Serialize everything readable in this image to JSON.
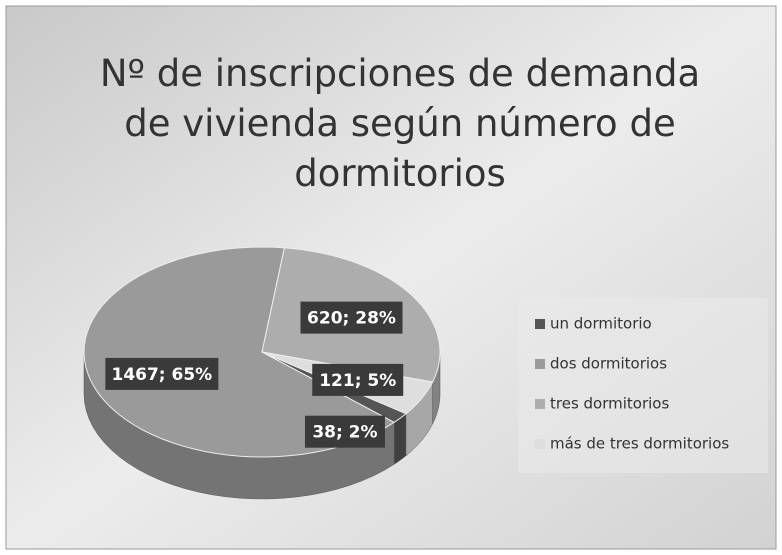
{
  "chart_data": {
    "type": "pie",
    "title": "Nº de inscripciones de demanda de vivienda según número de dormitorios",
    "categories": [
      "un dormitorio",
      "dos dormitorios",
      "tres dormitorios",
      "más de tres dormitorios"
    ],
    "values": [
      38,
      1467,
      620,
      121
    ],
    "value_labels": [
      "38; 2%",
      "1467; 65%",
      "620; 28%",
      "121; 5%"
    ],
    "colors": [
      "#555555",
      "#9a9a9a",
      "#adadad",
      "#dedede"
    ],
    "legend": "right"
  }
}
